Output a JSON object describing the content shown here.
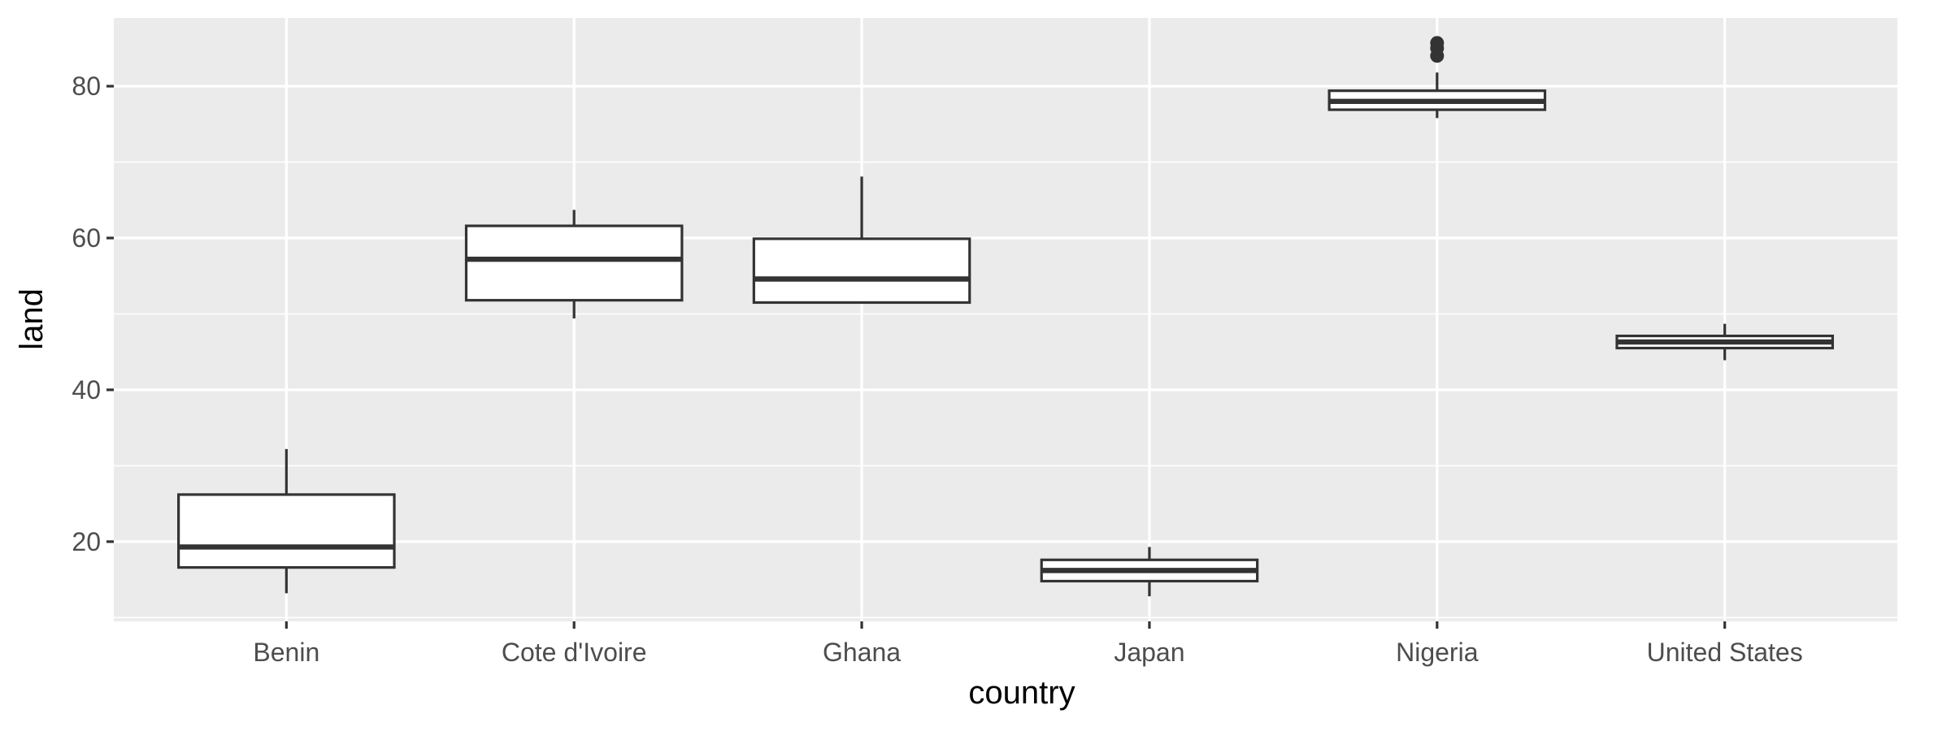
{
  "chart_data": {
    "type": "boxplot",
    "xlabel": "country",
    "ylabel": "land",
    "ylim": [
      9.5,
      89
    ],
    "y_ticks": [
      20,
      40,
      60,
      80
    ],
    "grid": true,
    "categories": [
      "Benin",
      "Cote d'Ivoire",
      "Ghana",
      "Japan",
      "Nigeria",
      "United States"
    ],
    "boxes": [
      {
        "category": "Benin",
        "min": 13.2,
        "q1": 16.6,
        "median": 19.3,
        "q3": 26.2,
        "max": 32.2,
        "outliers": []
      },
      {
        "category": "Cote d'Ivoire",
        "min": 49.4,
        "q1": 51.8,
        "median": 57.2,
        "q3": 61.6,
        "max": 63.7,
        "outliers": []
      },
      {
        "category": "Ghana",
        "min": 51.5,
        "q1": 51.5,
        "median": 54.6,
        "q3": 59.9,
        "max": 68.1,
        "outliers": []
      },
      {
        "category": "Japan",
        "min": 12.8,
        "q1": 14.8,
        "median": 16.2,
        "q3": 17.6,
        "max": 19.3,
        "outliers": []
      },
      {
        "category": "Nigeria",
        "min": 75.8,
        "q1": 76.9,
        "median": 78.0,
        "q3": 79.4,
        "max": 81.8,
        "outliers": [
          84.0,
          85.0,
          85.7
        ]
      },
      {
        "category": "United States",
        "min": 43.9,
        "q1": 45.5,
        "median": 46.3,
        "q3": 47.1,
        "max": 48.7,
        "outliers": []
      }
    ]
  }
}
